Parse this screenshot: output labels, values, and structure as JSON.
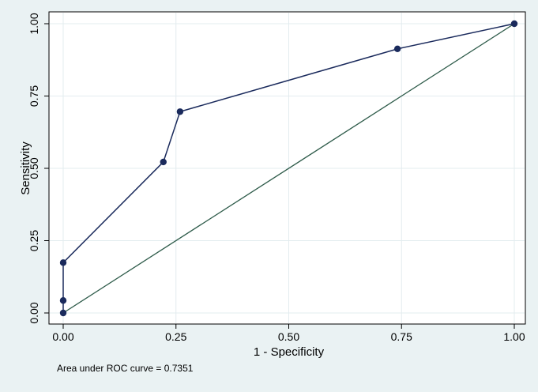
{
  "chart_data": {
    "type": "line",
    "title": "",
    "xlabel": "1 - Specificity",
    "ylabel": "Sensitivity",
    "xlim": [
      0,
      1
    ],
    "ylim": [
      0,
      1
    ],
    "xticks": [
      "0.00",
      "0.25",
      "0.50",
      "0.75",
      "1.00"
    ],
    "yticks": [
      "0.00",
      "0.25",
      "0.50",
      "0.75",
      "1.00"
    ],
    "tick_values": [
      0,
      0.25,
      0.5,
      0.75,
      1
    ],
    "grid": true,
    "series": [
      {
        "type": "line-with-markers",
        "x": [
          0,
          0,
          0,
          0.222,
          0.259,
          0.741,
          1.0
        ],
        "y": [
          0,
          0.043,
          0.174,
          0.522,
          0.696,
          0.913,
          1.0
        ]
      },
      {
        "type": "reference-line",
        "x": [
          0,
          1
        ],
        "y": [
          0,
          1
        ]
      }
    ],
    "note": "Area under ROC curve = 0.7351",
    "colors": {
      "roc": "#1a2a5c",
      "reference": "#2e5b4a",
      "grid": "#e3ecef",
      "background": "#eaf2f3",
      "plot_background": "#ffffff"
    }
  }
}
